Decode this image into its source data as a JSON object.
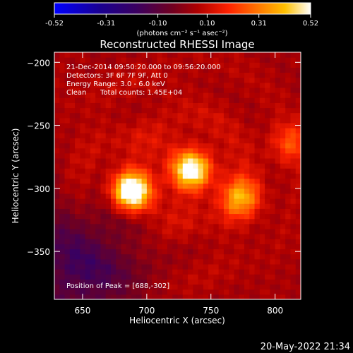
{
  "colorbar": {
    "ticks": [
      "-0.52",
      "-0.31",
      "-0.10",
      "0.10",
      "0.31",
      "0.52"
    ],
    "range": [
      -0.52,
      0.52
    ],
    "unit_label": "(photons cm⁻² s⁻¹ asec⁻²)"
  },
  "chart_data": {
    "type": "heatmap",
    "title": "Reconstructed RHESSI Image",
    "xlabel": "Heliocentric X (arcsec)",
    "ylabel": "Heliocentric Y (arcsec)",
    "xlim": [
      628,
      820
    ],
    "ylim": [
      -388,
      -192
    ],
    "xticks": [
      650,
      700,
      750,
      800
    ],
    "yticks": [
      -200,
      -250,
      -300,
      -350
    ],
    "info_lines": [
      "21-Dec-2014 09:50:20.000 to 09:56:20.000",
      "Detectors: 3F 6F 7F 9F, Att 0",
      "Energy Range: 3.0 - 6.0 keV"
    ],
    "method": "Clean",
    "total_counts": "Total counts: 1.45E+04",
    "peak_label": "Position of Peak = [688,-302]",
    "sources": [
      {
        "x": 688,
        "y": -302,
        "peak": 0.52
      },
      {
        "x": 735,
        "y": -285,
        "peak": 0.42
      },
      {
        "x": 773,
        "y": -307,
        "peak": 0.3
      },
      {
        "x": 812,
        "y": -264,
        "peak": 0.18
      }
    ]
  },
  "timestamp": "20-May-2022 21:34"
}
